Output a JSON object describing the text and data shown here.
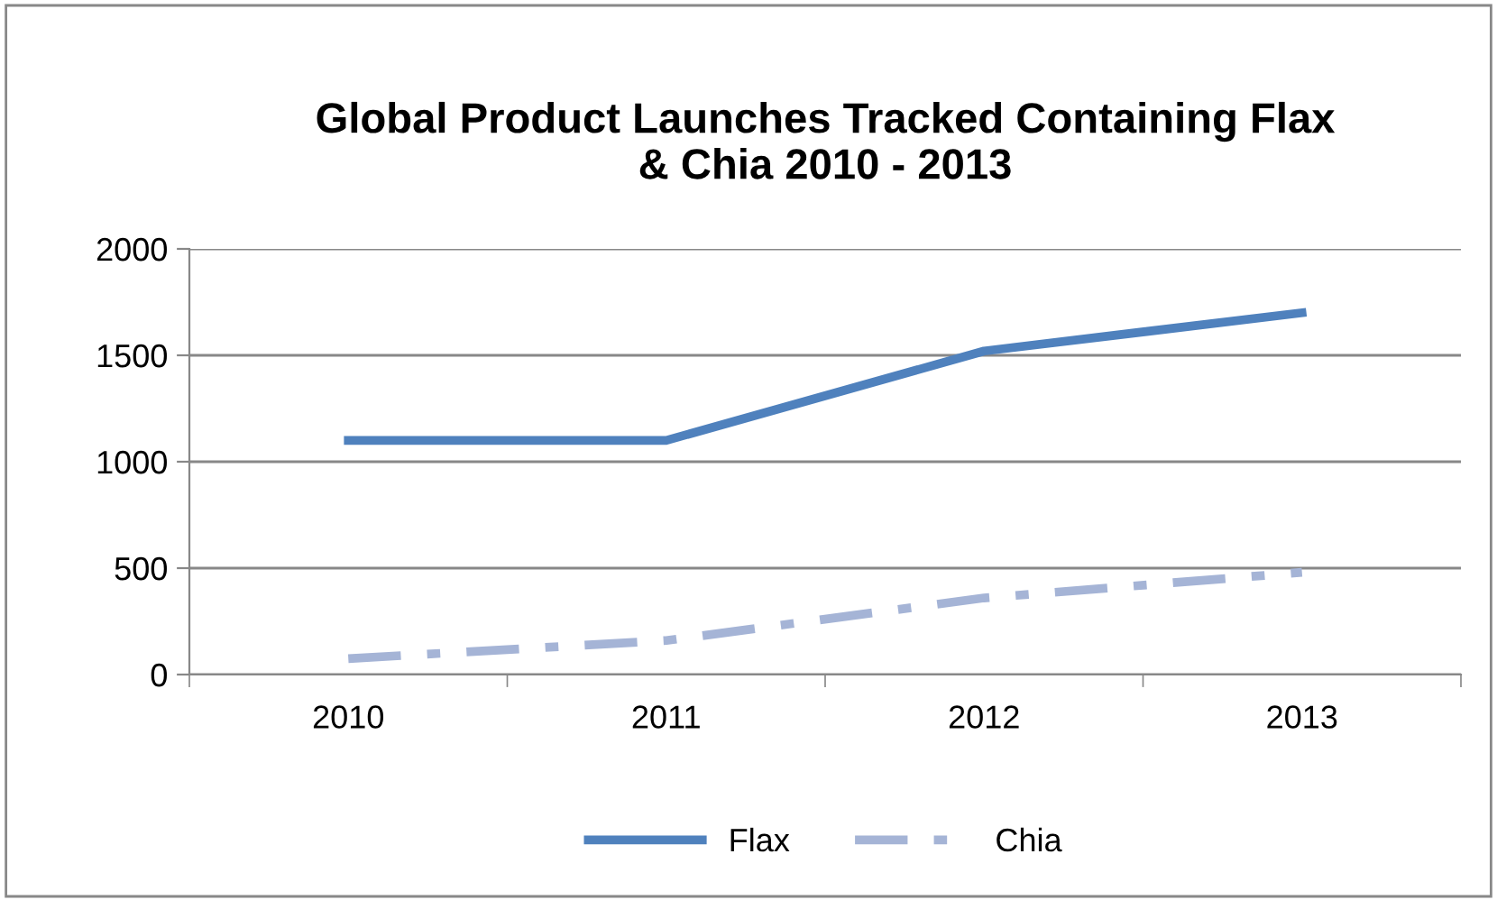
{
  "chart_data": {
    "type": "line",
    "title": "Global Product Launches Tracked Containing Flax\n& Chia 2010 - 2013",
    "categories": [
      "2010",
      "2011",
      "2012",
      "2013"
    ],
    "series": [
      {
        "name": "Flax",
        "color": "#4f81bd",
        "values": [
          1100,
          1100,
          1520,
          1700
        ],
        "line_style": "solid"
      },
      {
        "name": "Chia",
        "color": "#a5b4d6",
        "values": [
          75,
          160,
          360,
          480
        ],
        "line_style": "dashdot"
      }
    ],
    "ylim": [
      0,
      2000
    ],
    "yticks": [
      0,
      500,
      1000,
      1500,
      2000
    ],
    "grid": "y",
    "legend": "bottom",
    "marker": "none"
  }
}
